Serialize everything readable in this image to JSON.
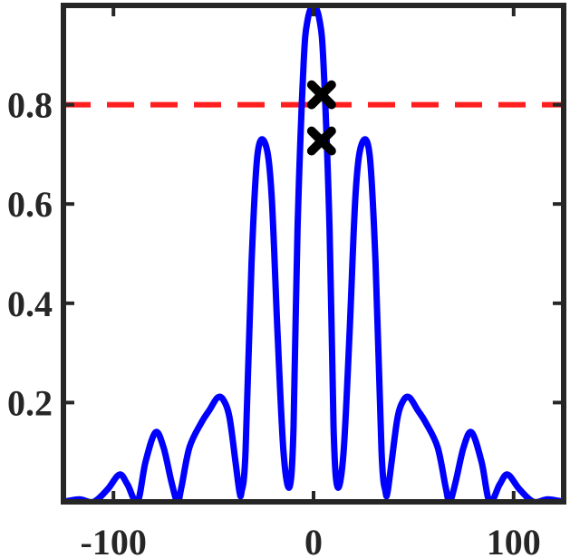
{
  "chart_data": {
    "type": "line",
    "title": "",
    "xlabel": "",
    "ylabel": "",
    "xlim": [
      -125,
      125
    ],
    "ylim": [
      0,
      1.0
    ],
    "grid": false,
    "legend": "none",
    "xticks": [
      -100,
      0,
      100
    ],
    "xtick_labels": [
      "-100",
      "0",
      "100"
    ],
    "yticks": [
      0.2,
      0.4,
      0.6,
      0.8
    ],
    "ytick_labels": [
      "0.2",
      "0.4",
      "0.6",
      "0.8"
    ],
    "series": [
      {
        "color": "#0000ff",
        "style": "solid",
        "x": [
          -125,
          -117,
          -110,
          -103,
          -97,
          -93,
          -88,
          -84,
          -79,
          -75,
          -71,
          -68,
          -66,
          -62,
          -56,
          -52,
          -48,
          -45,
          -42,
          -39,
          -37,
          -36,
          -34,
          -31,
          -28,
          -24,
          -21,
          -18,
          -15,
          -12,
          -10,
          -8,
          -5,
          -3,
          0,
          3,
          5,
          8,
          10,
          12,
          15,
          18,
          21,
          24,
          28,
          31,
          34,
          36,
          37,
          39,
          42,
          45,
          48,
          52,
          56,
          62,
          66,
          68,
          71,
          75,
          79,
          84,
          88,
          93,
          97,
          103,
          110,
          117,
          125
        ],
        "y": [
          0.0,
          0.005,
          0.0,
          0.025,
          0.055,
          0.035,
          0.0,
          0.08,
          0.14,
          0.11,
          0.04,
          0.0,
          0.03,
          0.11,
          0.16,
          0.185,
          0.21,
          0.205,
          0.17,
          0.08,
          0.02,
          0.02,
          0.1,
          0.48,
          0.7,
          0.72,
          0.62,
          0.34,
          0.1,
          0.03,
          0.15,
          0.55,
          0.88,
          0.97,
          1.0,
          0.97,
          0.88,
          0.55,
          0.15,
          0.03,
          0.1,
          0.34,
          0.62,
          0.72,
          0.7,
          0.48,
          0.1,
          0.02,
          0.02,
          0.08,
          0.17,
          0.205,
          0.21,
          0.185,
          0.16,
          0.11,
          0.03,
          0.0,
          0.04,
          0.11,
          0.14,
          0.08,
          0.0,
          0.035,
          0.055,
          0.025,
          0.0,
          0.005,
          0.0
        ]
      }
    ],
    "threshold": {
      "y": 0.8,
      "color": "#ff1f1f",
      "style": "dashed"
    },
    "markers": [
      {
        "x": 4,
        "y": 0.82,
        "symbol": "x",
        "color": "#000000"
      },
      {
        "x": 4,
        "y": 0.727,
        "symbol": "x",
        "color": "#000000"
      }
    ],
    "axis_color": "#262626"
  }
}
